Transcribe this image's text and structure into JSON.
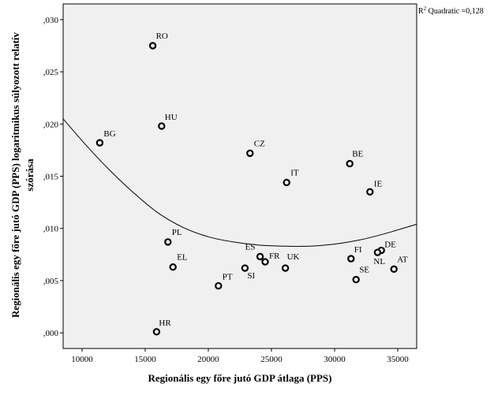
{
  "chart_data": {
    "type": "scatter",
    "title": "",
    "xlabel": "Regionális egy főre jutó GDP átlaga (PPS)",
    "ylabel_lines": [
      "Regionális egy főre jutó GDP (PPS) logaritmikus súlyozott relatív",
      "szórása"
    ],
    "xlim": [
      8500,
      36500
    ],
    "ylim": [
      -0.0015,
      0.0315
    ],
    "x_ticks": [
      10000,
      15000,
      20000,
      25000,
      30000,
      35000
    ],
    "x_tick_labels": [
      "10000",
      "15000",
      "20000",
      "25000",
      "30000",
      "35000"
    ],
    "y_ticks": [
      0,
      0.005,
      0.01,
      0.015,
      0.02,
      0.025,
      0.03
    ],
    "y_tick_labels": [
      ",000",
      ",005",
      ",010",
      ",015",
      ",020",
      ",025",
      ",030"
    ],
    "grid": false,
    "background": "#f0f0f0",
    "fit": {
      "type": "quadratic",
      "r2_label_main": "R",
      "r2_label_sup": "2",
      "r2_label_rest": " Quadratic =0,128",
      "curve": [
        [
          8500,
          0.0205
        ],
        [
          10000,
          0.0184
        ],
        [
          12000,
          0.0158
        ],
        [
          14000,
          0.0135
        ],
        [
          16000,
          0.0115
        ],
        [
          18000,
          0.0101
        ],
        [
          20000,
          0.0092
        ],
        [
          22000,
          0.0087
        ],
        [
          24000,
          0.0084
        ],
        [
          26000,
          0.0083
        ],
        [
          28000,
          0.0083
        ],
        [
          30000,
          0.0085
        ],
        [
          32000,
          0.0089
        ],
        [
          34000,
          0.0095
        ],
        [
          36500,
          0.0104
        ]
      ]
    },
    "points": [
      {
        "label": "RO",
        "x": 15600,
        "y": 0.0275
      },
      {
        "label": "HU",
        "x": 16300,
        "y": 0.0198
      },
      {
        "label": "BG",
        "x": 11400,
        "y": 0.0182
      },
      {
        "label": "CZ",
        "x": 23300,
        "y": 0.0172
      },
      {
        "label": "BE",
        "x": 31200,
        "y": 0.0162
      },
      {
        "label": "IT",
        "x": 26200,
        "y": 0.0144
      },
      {
        "label": "IE",
        "x": 32800,
        "y": 0.0135
      },
      {
        "label": "PL",
        "x": 16800,
        "y": 0.0087
      },
      {
        "label": "EL",
        "x": 17200,
        "y": 0.0063
      },
      {
        "label": "ES",
        "x": 24100,
        "y": 0.0073
      },
      {
        "label": "FR",
        "x": 24500,
        "y": 0.0068
      },
      {
        "label": "UK",
        "x": 26100,
        "y": 0.0062
      },
      {
        "label": "SI",
        "x": 22900,
        "y": 0.0062
      },
      {
        "label": "PT",
        "x": 20800,
        "y": 0.0045
      },
      {
        "label": "FI",
        "x": 31300,
        "y": 0.0071
      },
      {
        "label": "DE",
        "x": 33700,
        "y": 0.0079
      },
      {
        "label": "NL",
        "x": 33400,
        "y": 0.0077
      },
      {
        "label": "SE",
        "x": 31700,
        "y": 0.0051
      },
      {
        "label": "AT",
        "x": 34700,
        "y": 0.0061
      },
      {
        "label": "HR",
        "x": 15900,
        "y": 0.0001
      }
    ]
  }
}
